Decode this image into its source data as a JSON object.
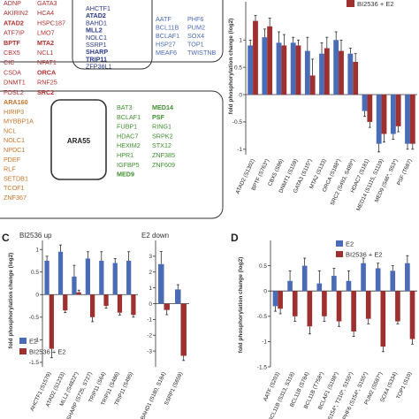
{
  "venn": {
    "red_col1": [
      "ADNP",
      "AKIRIN2",
      "ATAD2",
      "ATF7IP",
      "BPTF",
      "CBX5",
      "CIC",
      "CSDA",
      "DNMT1",
      "FOSL2"
    ],
    "red_col2": [
      "GATA3",
      "HCA4",
      "HSPC187",
      "LMO7",
      "MTA2",
      "NCL1",
      "NFAT1",
      "ORCA",
      "RNF25",
      "SRC2"
    ],
    "red_bold": [
      "ATAD2",
      "BPTF",
      "MTA2",
      "ORCA",
      "SRC2"
    ],
    "navy_col": [
      "AHCTF1",
      "ATAD2",
      "BAHD1",
      "MLL2",
      "NOLC1",
      "SSRP1",
      "SHARP",
      "TRIP11",
      "ZFP36L1"
    ],
    "navy_bold": [
      "ATAD2",
      "MLL2",
      "SHARP",
      "TRIP11"
    ],
    "blue_col1": [
      "AATF",
      "BCL11B",
      "BCLAF1",
      "HSP27",
      "MEAF6"
    ],
    "blue_col2": [
      "PHF6",
      "PUM2",
      "SOX4",
      "TOP1",
      "TWISTNB"
    ],
    "orange_col": [
      "ARA160",
      "HIRIP3",
      "MYBBP1A",
      "NCL",
      "NOLC1",
      "NPDC1",
      "PDEF",
      "RLF",
      "SETDB1",
      "TCOF1",
      "ZNF367"
    ],
    "orange_bold": [
      "ARA160"
    ],
    "center_label": "ARA55",
    "green_col1": [
      "BAT3",
      "BCLAF1",
      "FUBP1",
      "HDAC7",
      "HEXIM2",
      "HPR1",
      "IGFBP5",
      "MED9"
    ],
    "green_col2": [
      "MED14",
      "PSF",
      "RING1",
      "SRPK2",
      "STX12",
      "ZNF385",
      "ZNF609"
    ],
    "green_bold": [
      "MED14",
      "PSF",
      "MED9"
    ],
    "label_up": "BI2536 up",
    "label_down": "E2 down"
  },
  "colors": {
    "blue": "#4a6bb5",
    "red": "#9e3030",
    "dark_red": "#b03030",
    "navy": "#2c3a8a",
    "orange": "#c8742a",
    "green": "#3f8f2f",
    "axis": "#333333"
  },
  "panel_labels": {
    "c": "C",
    "d": "D"
  },
  "legend": {
    "e2": "E2",
    "combo": "BI2536 + E2"
  },
  "chart_data": [
    {
      "id": "B",
      "type": "bar",
      "ylabel": "fold phosphorylation change (log2)",
      "ylim": [
        -1.1,
        1.7
      ],
      "yticks": [
        1,
        0.5,
        0,
        -0.5,
        -1
      ],
      "categories": [
        "ATAD2 (S1302)",
        "BPTF (S763*)",
        "CBX5 (S96)",
        "DNMT1 (S159)",
        "GATA3 (S115*)",
        "MTA2 (S133)",
        "ORCA (S188*)",
        "SRC2 (S493, S499*)",
        "HDAC7 (S181)",
        "MED14 (S1115, S1119)",
        "MED9 (S46*, S53*)",
        "PSF (T687)"
      ],
      "series": [
        {
          "name": "",
          "values": [
            0.9,
            1.05,
            0.95,
            0.95,
            0.8,
            0.75,
            1.0,
            0.75,
            -0.3,
            -0.9,
            -0.72,
            -0.9
          ]
        },
        {
          "name": "BI2536 + E2",
          "values": [
            1.35,
            1.25,
            0.9,
            0.9,
            0.35,
            0.85,
            0.8,
            0.6,
            -0.5,
            -0.72,
            -0.58,
            -0.9
          ]
        }
      ],
      "errors": [
        [
          0.1,
          0.15,
          0.2,
          0.1,
          0.25,
          0.2,
          0.15,
          0.1,
          0.1,
          0.15,
          0.1,
          0.1
        ],
        [
          0.1,
          0.15,
          0.2,
          0.1,
          0.3,
          0.2,
          0.2,
          0.15,
          0.1,
          0.15,
          0.1,
          0.1
        ]
      ]
    },
    {
      "id": "C",
      "type": "bar",
      "ylabel": "fold phosphorylation change (log2)",
      "ylim": [
        -1.6,
        1.2
      ],
      "yticks": [
        1,
        0.5,
        0,
        -0.5,
        -1,
        -1.5
      ],
      "categories": [
        "AHCTF1 (S1579)",
        "ATAD2 (S1233)",
        "MLL2 (S4822*)",
        "SHARP (S725, S727)",
        "TRIP11 (S64)",
        "TRIP11 (S486)",
        "TRIP11 (S495)"
      ],
      "series": [
        {
          "name": "E2",
          "values": [
            0.75,
            0.95,
            0.4,
            0.8,
            0.75,
            0.7,
            0.75
          ]
        },
        {
          "name": "BI2536 + E2",
          "values": [
            -1.2,
            -0.35,
            0.05,
            -0.5,
            -0.25,
            -0.4,
            -0.45
          ]
        }
      ],
      "errors": [
        [
          0.1,
          0.15,
          0.25,
          0.15,
          0.2,
          0.1,
          0.2
        ],
        [
          0.2,
          0.05,
          0.05,
          0.1,
          0.05,
          0.05,
          0.05
        ]
      ]
    },
    {
      "id": "C2",
      "type": "bar",
      "ylim": [
        -4.0,
        4.0
      ],
      "yticks": [
        3,
        2,
        1,
        0,
        -1,
        -2,
        -3
      ],
      "categories": [
        "BAHD1 (S180, S184)",
        "SSRP1 (S659)"
      ],
      "series": [
        {
          "name": "E2",
          "values": [
            2.5,
            0.9
          ]
        },
        {
          "name": "BI2536 + E2",
          "values": [
            -0.4,
            -3.3
          ]
        }
      ],
      "errors": [
        [
          0.8,
          0.3
        ],
        [
          0.3,
          0.3
        ]
      ]
    },
    {
      "id": "D",
      "type": "bar",
      "ylabel": "fold phosphorylation change (log2)",
      "ylim": [
        -1.5,
        1.0
      ],
      "yticks": [
        0.5,
        0,
        -0.5,
        -1,
        -1.5
      ],
      "categories": [
        "AATF (S203)",
        "BCL11B (S313, S318)",
        "BCL11B (S784)",
        "BCL11B (T758*)",
        "BCLAF1 (S198*)",
        "PHF6 (S154*, T210*, S155*)",
        "PHF6 (S154*, S155*)",
        "PUM2 (S587*)",
        "SOX4 (S334)",
        "TOP1 (S10)"
      ],
      "series": [
        {
          "name": "E2",
          "values": [
            -0.3,
            0.2,
            0.5,
            0.15,
            0.3,
            0.2,
            0.55,
            0.45,
            0.4,
            0.55
          ]
        },
        {
          "name": "BI2536 + E2",
          "values": [
            -0.35,
            -0.5,
            -0.7,
            -0.5,
            -0.6,
            -0.8,
            -0.55,
            -1.1,
            -0.6,
            -0.95
          ]
        }
      ],
      "errors": [
        [
          0.1,
          0.2,
          0.15,
          0.25,
          0.15,
          0.2,
          0.1,
          0.1,
          0.1,
          0.15
        ],
        [
          0.1,
          0.1,
          0.15,
          0.1,
          0.1,
          0.1,
          0.1,
          0.1,
          0.05,
          0.1
        ]
      ]
    }
  ]
}
